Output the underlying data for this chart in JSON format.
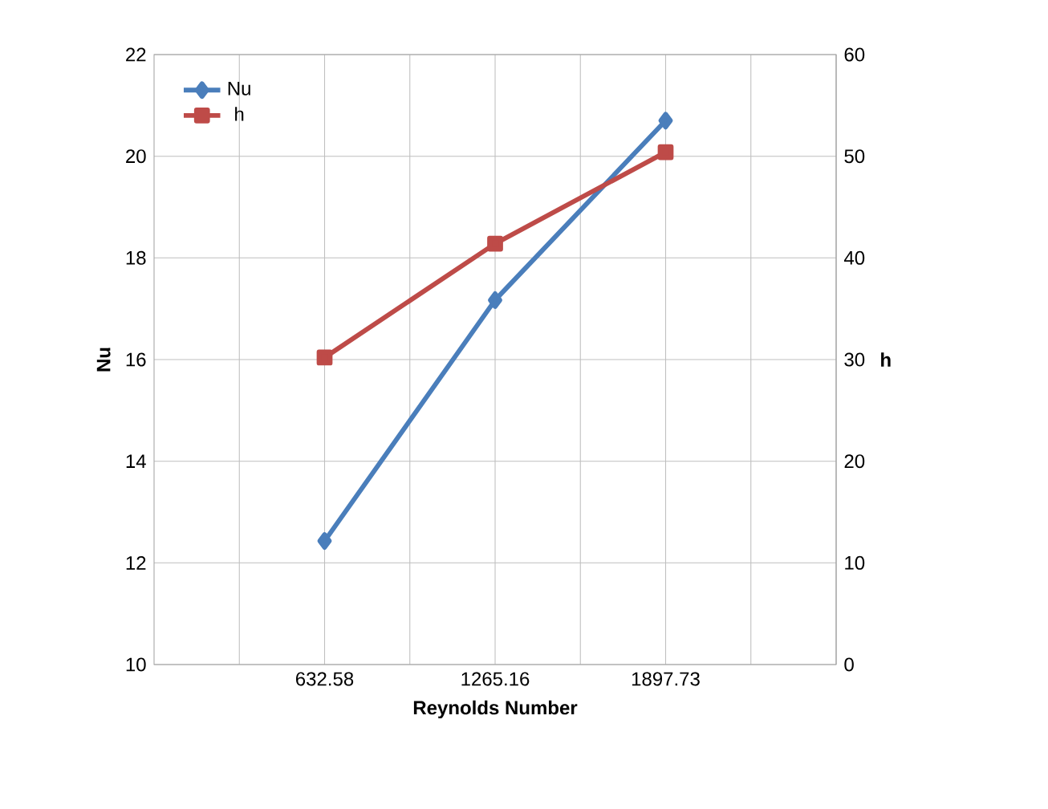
{
  "chart_data": {
    "type": "line",
    "xlabel": "Reynolds Number",
    "ylabel": "Nu",
    "y2label": "h",
    "x": [
      632.58,
      1265.16,
      1897.73
    ],
    "xlim": [
      0,
      2530.32
    ],
    "xticks": [
      {
        "value": 316.29,
        "label": null
      },
      632.58,
      {
        "value": 948.87,
        "label": null
      },
      1265.16,
      {
        "value": 1581.45,
        "label": null
      },
      1897.73,
      {
        "value": 2214.02,
        "label": null
      }
    ],
    "ylim": [
      10,
      22
    ],
    "yticks": [
      10,
      12,
      14,
      16,
      18,
      20,
      22
    ],
    "y2lim": [
      0,
      60
    ],
    "y2ticks": [
      0,
      10,
      20,
      30,
      40,
      50,
      60
    ],
    "grid": true,
    "legend": "top left",
    "line_style": "solid",
    "series": [
      {
        "name": "Nu",
        "color": "#4a7ebb",
        "marker": "diamond",
        "values": [
          12.43,
          17.17,
          20.7
        ]
      },
      {
        "name": "h",
        "color": "#be4b48",
        "marker": "square",
        "axis": "y2",
        "values": [
          30.2,
          41.4,
          50.4
        ]
      }
    ]
  }
}
